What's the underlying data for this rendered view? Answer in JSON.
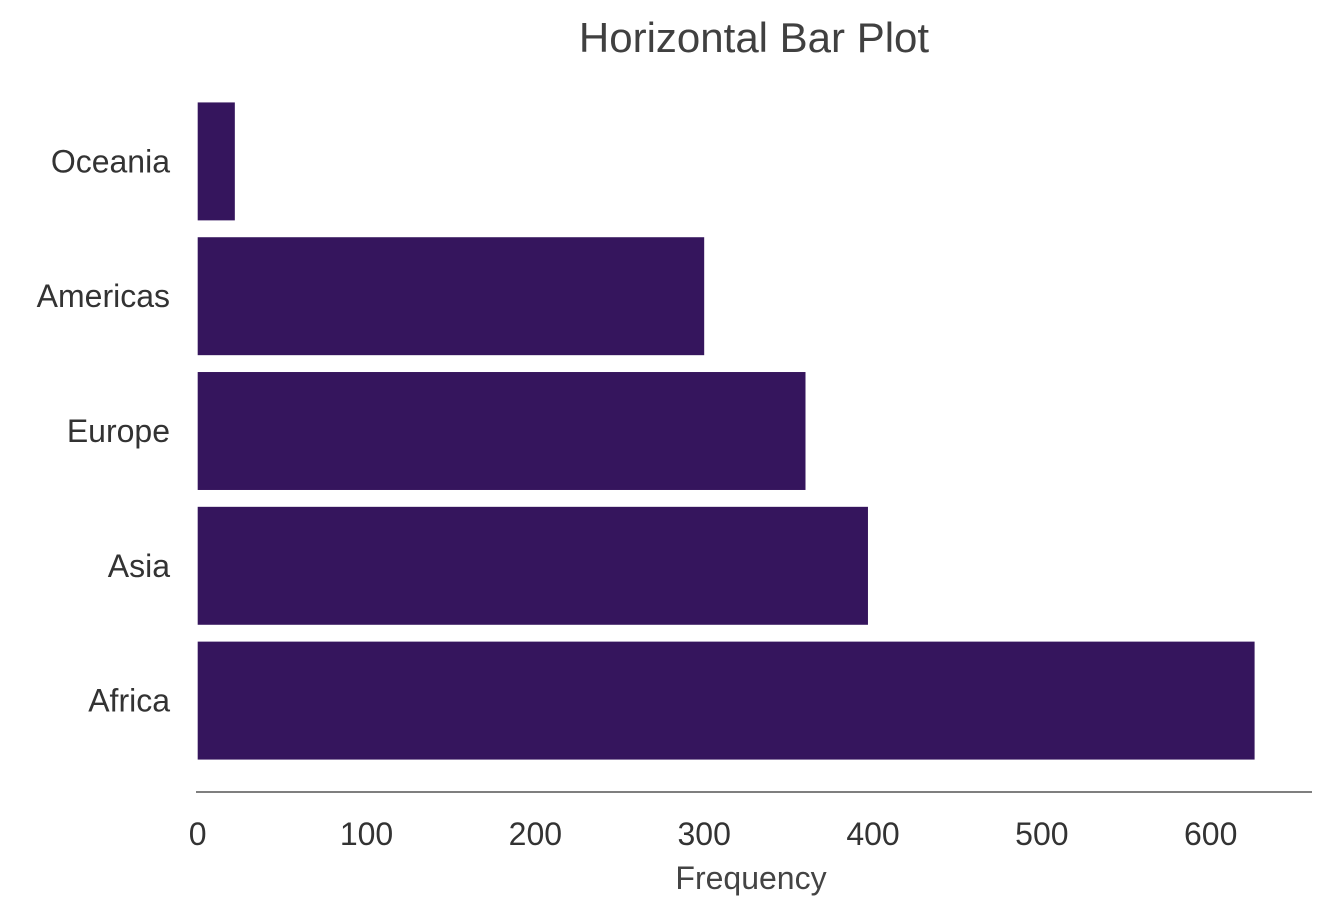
{
  "chart_data": {
    "type": "bar",
    "orientation": "horizontal",
    "title": "Horizontal Bar Plot",
    "xlabel": "Frequency",
    "ylabel": "",
    "categories": [
      "Africa",
      "Asia",
      "Europe",
      "Americas",
      "Oceania"
    ],
    "values": [
      626,
      397,
      360,
      300,
      22
    ],
    "xlim": [
      -1,
      660
    ],
    "xticks": [
      0,
      100,
      200,
      300,
      400,
      500,
      600
    ],
    "xtick_labels": [
      "0",
      "100",
      "200",
      "300",
      "400",
      "500",
      "600"
    ],
    "grid": false,
    "legend": "none",
    "bar_color": "#35155d",
    "axis_color": "#7f7f7f"
  }
}
